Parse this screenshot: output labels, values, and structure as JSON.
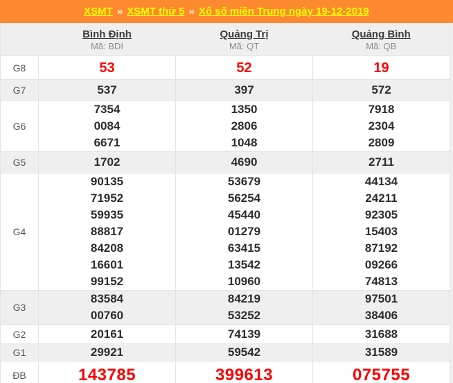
{
  "banner": {
    "separator": "»",
    "links": [
      {
        "label": "XSMT"
      },
      {
        "label": "XSMT thứ 5"
      },
      {
        "label": "Xổ số miền Trung ngày 19-12-2019"
      }
    ]
  },
  "columns": [
    {
      "name": "Bình Định",
      "code": "Mã: BDI"
    },
    {
      "name": "Quảng Trị",
      "code": "Mã: QT"
    },
    {
      "name": "Quảng Bình",
      "code": "Mã: QB"
    }
  ],
  "prizes": [
    {
      "label": "G8",
      "highlight": true,
      "values": [
        [
          "53"
        ],
        [
          "52"
        ],
        [
          "19"
        ]
      ]
    },
    {
      "label": "G7",
      "highlight": false,
      "values": [
        [
          "537"
        ],
        [
          "397"
        ],
        [
          "572"
        ]
      ]
    },
    {
      "label": "G6",
      "highlight": false,
      "values": [
        [
          "7354",
          "0084",
          "6671"
        ],
        [
          "1350",
          "2806",
          "1048"
        ],
        [
          "7918",
          "2304",
          "2809"
        ]
      ]
    },
    {
      "label": "G5",
      "highlight": false,
      "values": [
        [
          "1702"
        ],
        [
          "4690"
        ],
        [
          "2711"
        ]
      ]
    },
    {
      "label": "G4",
      "highlight": false,
      "values": [
        [
          "90135",
          "71952",
          "59935",
          "88817",
          "84208",
          "16601",
          "99152"
        ],
        [
          "53679",
          "56254",
          "45440",
          "01279",
          "63415",
          "13542",
          "10960"
        ],
        [
          "44134",
          "24211",
          "92305",
          "15403",
          "87192",
          "09266",
          "74813"
        ]
      ]
    },
    {
      "label": "G3",
      "highlight": false,
      "values": [
        [
          "83584",
          "00760"
        ],
        [
          "84219",
          "53252"
        ],
        [
          "97501",
          "38406"
        ]
      ]
    },
    {
      "label": "G2",
      "highlight": false,
      "values": [
        [
          "20161"
        ],
        [
          "74139"
        ],
        [
          "31688"
        ]
      ]
    },
    {
      "label": "G1",
      "highlight": false,
      "values": [
        [
          "29921"
        ],
        [
          "59542"
        ],
        [
          "31589"
        ]
      ]
    },
    {
      "label": "ĐB",
      "highlight": true,
      "values": [
        [
          "143785"
        ],
        [
          "399613"
        ],
        [
          "075755"
        ]
      ]
    }
  ],
  "colors": {
    "banner_bg": "#fd8a30",
    "banner_link": "#ffff00",
    "highlight_red": "#ff0000",
    "stripe_gray": "#efefef",
    "number_dark": "#2d2d2d"
  }
}
